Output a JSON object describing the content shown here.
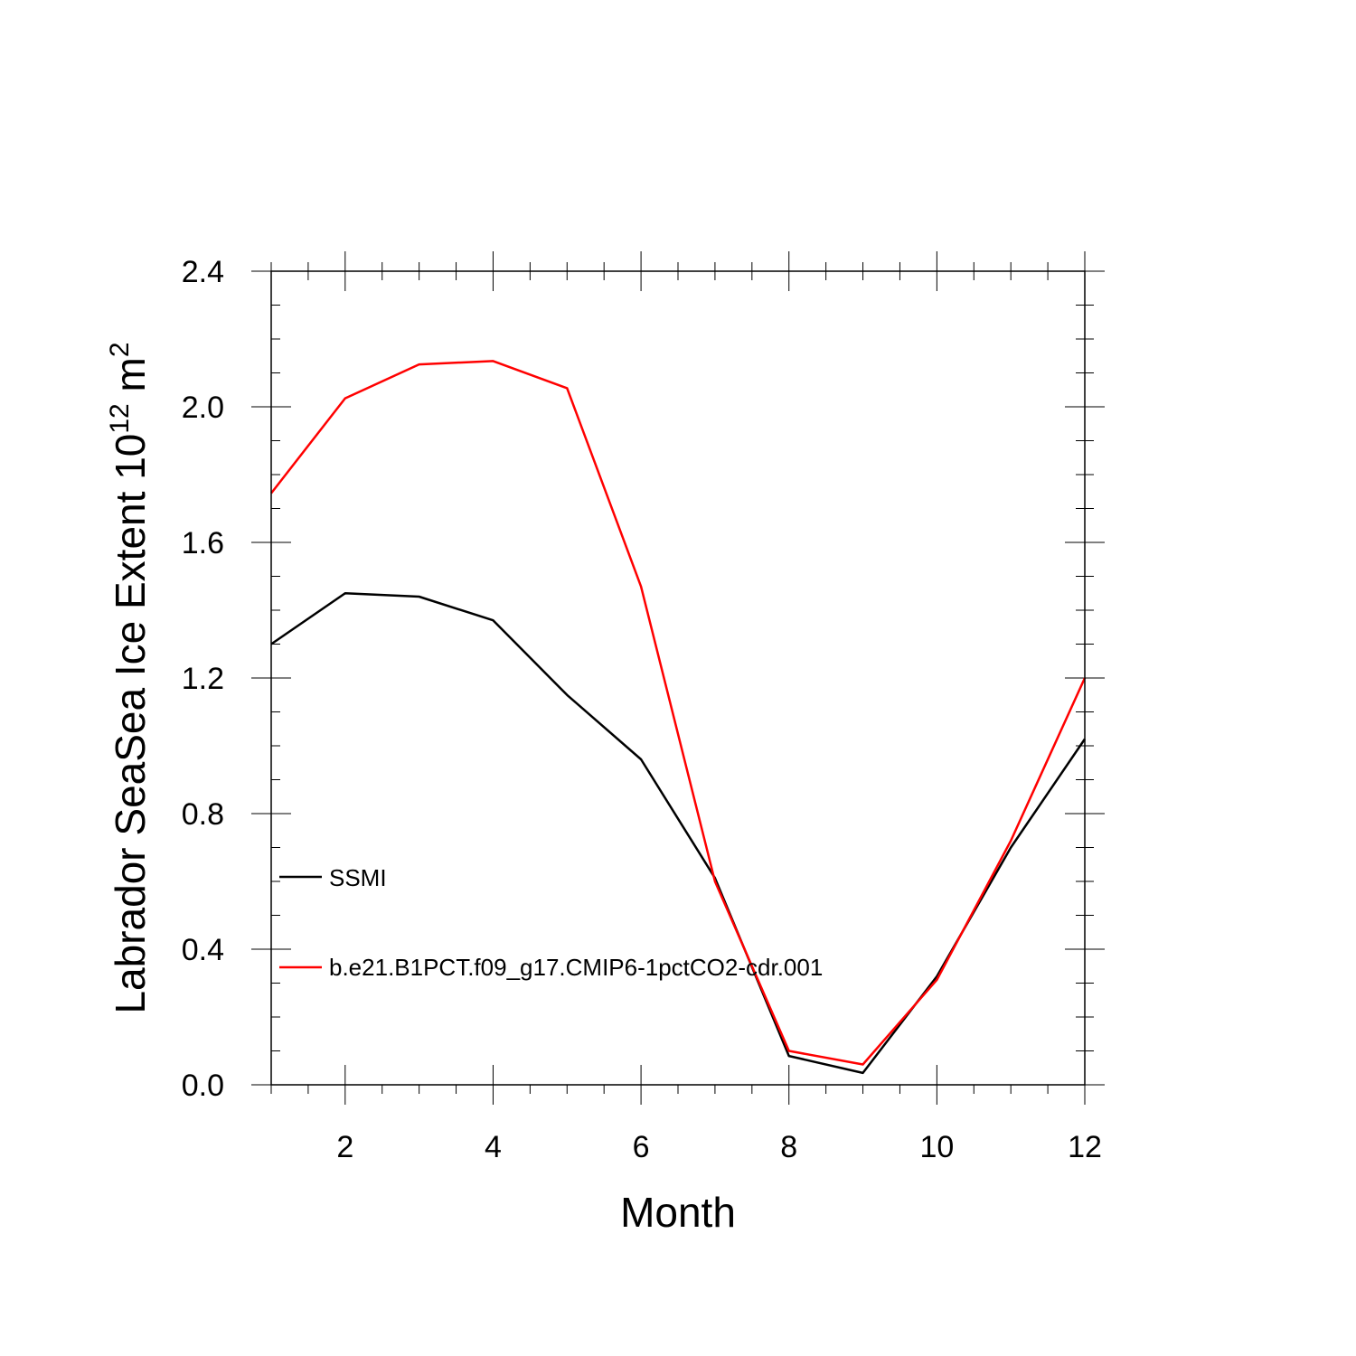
{
  "chart_data": {
    "type": "line",
    "title": "",
    "xlabel": "Month",
    "ylabel": {
      "prefix": "Labrador SeaSea Ice Extent 10",
      "exponent": "12",
      "unit_base": " m",
      "unit_exponent": "2"
    },
    "xlim": [
      1,
      12
    ],
    "ylim": [
      0.0,
      2.4
    ],
    "x": [
      1,
      2,
      3,
      4,
      5,
      6,
      7,
      8,
      9,
      10,
      11,
      12
    ],
    "x_ticks": [
      "2",
      "4",
      "6",
      "8",
      "10",
      "12"
    ],
    "y_ticks": [
      "0.0",
      "0.4",
      "0.8",
      "1.2",
      "1.6",
      "2.0",
      "2.4"
    ],
    "grid": false,
    "legend_position": "lower-left inside",
    "series": [
      {
        "name": "SSMI",
        "color": "#000000",
        "values": [
          1.3,
          1.45,
          1.44,
          1.37,
          1.15,
          0.96,
          0.61,
          0.085,
          0.035,
          0.32,
          0.7,
          1.02
        ]
      },
      {
        "name": "b.e21.B1PCT.f09_g17.CMIP6-1pctCO2-cdr.001",
        "color": "#ff0000",
        "values": [
          1.745,
          2.025,
          2.125,
          2.135,
          2.055,
          1.47,
          0.6,
          0.1,
          0.06,
          0.31,
          0.72,
          1.2
        ]
      }
    ]
  }
}
